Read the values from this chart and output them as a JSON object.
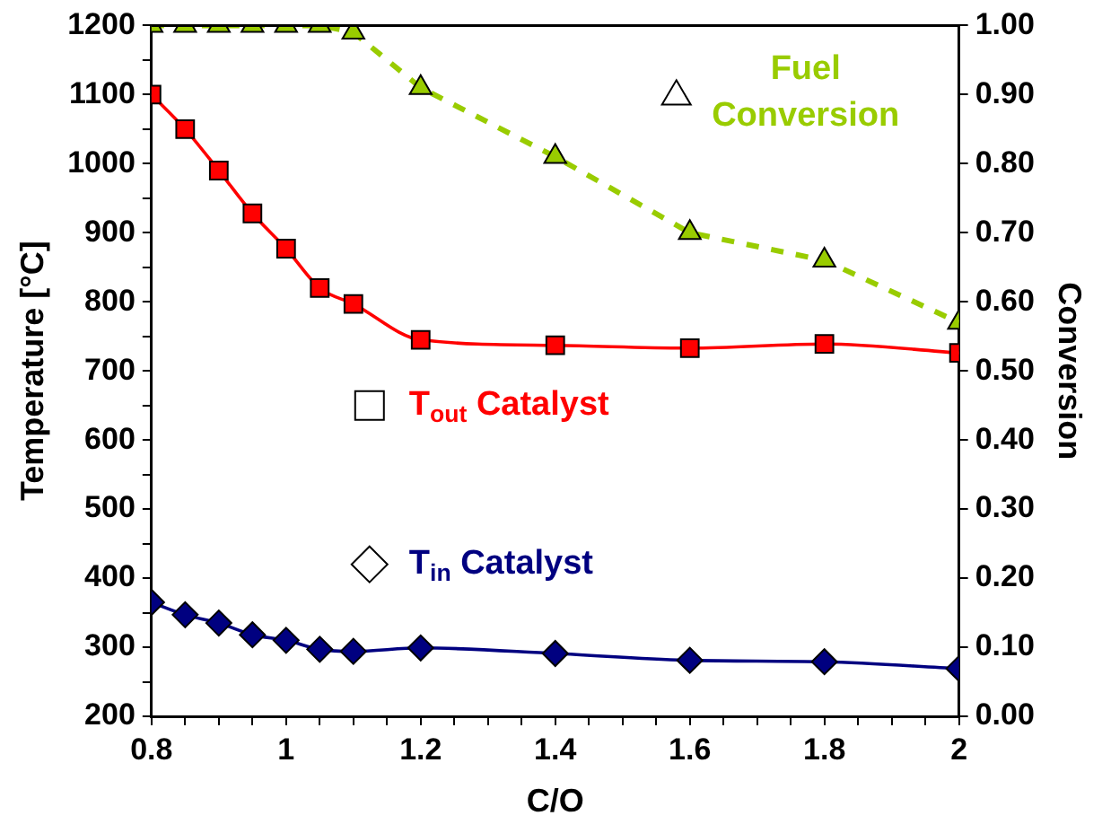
{
  "chart_data": {
    "type": "line",
    "xlabel": "C/O",
    "ylabel": "Temperature [°C]",
    "y2label": "Conversion",
    "x": [
      0.8,
      0.85,
      0.9,
      0.95,
      1,
      1.05,
      1.1,
      1.2,
      1.4,
      1.6,
      1.8,
      2
    ],
    "series": [
      {
        "name": "Fuel Conversion",
        "color": "#99cc00",
        "axis": "y2",
        "marker": "triangle",
        "line_style": "dashed",
        "values": [
          1,
          1,
          1,
          1,
          1,
          1,
          0.99,
          0.91,
          0.81,
          0.7,
          0.66,
          0.57
        ]
      },
      {
        "name": "T$_{out}$ Catalyst",
        "color": "#ff0000",
        "marker": "square",
        "line_style": "solid",
        "values": [
          1100,
          1050,
          990,
          928,
          877,
          820,
          797,
          745,
          737,
          733,
          739,
          726
        ]
      },
      {
        "name": "T$_{in}$ Catalyst",
        "color": "#000080",
        "marker": "diamond",
        "line_style": "solid",
        "values": [
          365,
          347,
          335,
          318,
          310,
          297,
          294,
          299,
          291,
          281,
          279,
          269
        ]
      }
    ],
    "xlim": [
      0.8,
      2
    ],
    "xticks": [
      0.8,
      {
        "value": 0.85,
        "label": null
      },
      {
        "value": 0.9,
        "label": null
      },
      {
        "value": 0.95,
        "label": null
      },
      1,
      {
        "value": 1.05,
        "label": null
      },
      {
        "value": 1.1,
        "label": null
      },
      {
        "value": 1.15,
        "label": null
      },
      1.2,
      {
        "value": 1.25,
        "label": null
      },
      {
        "value": 1.3,
        "label": null
      },
      {
        "value": 1.35,
        "label": null
      },
      1.4,
      {
        "value": 1.45,
        "label": null
      },
      {
        "value": 1.5,
        "label": null
      },
      {
        "value": 1.55,
        "label": null
      },
      1.6,
      {
        "value": 1.65,
        "label": null
      },
      {
        "value": 1.7,
        "label": null
      },
      {
        "value": 1.75,
        "label": null
      },
      1.8,
      {
        "value": 1.85,
        "label": null
      },
      {
        "value": 1.9,
        "label": null
      },
      {
        "value": 1.95,
        "label": null
      },
      2
    ],
    "ylim": [
      200,
      1200
    ],
    "yticks": [
      200,
      {
        "value": 250,
        "label": null
      },
      300,
      {
        "value": 350,
        "label": null
      },
      400,
      {
        "value": 450,
        "label": null
      },
      500,
      {
        "value": 550,
        "label": null
      },
      600,
      {
        "value": 650,
        "label": null
      },
      700,
      {
        "value": 750,
        "label": null
      },
      800,
      {
        "value": 850,
        "label": null
      },
      900,
      {
        "value": 950,
        "label": null
      },
      1000,
      {
        "value": 1050,
        "label": null
      },
      1100,
      {
        "value": 1150,
        "label": null
      },
      1200
    ],
    "y2lim": [
      0,
      1
    ],
    "y2ticks": [
      {
        "value": 0,
        "label": "0.00"
      },
      {
        "value": 0.1,
        "label": "0.10"
      },
      {
        "value": 0.2,
        "label": "0.20"
      },
      {
        "value": 0.3,
        "label": "0.30"
      },
      {
        "value": 0.4,
        "label": "0.40"
      },
      {
        "value": 0.5,
        "label": "0.50"
      },
      {
        "value": 0.6,
        "label": "0.60"
      },
      {
        "value": 0.7,
        "label": "0.70"
      },
      {
        "value": 0.8,
        "label": "0.80"
      },
      {
        "value": 0.9,
        "label": "0.90"
      },
      {
        "value": 1,
        "label": "1.00"
      }
    ],
    "grid": false,
    "legend": "center"
  }
}
